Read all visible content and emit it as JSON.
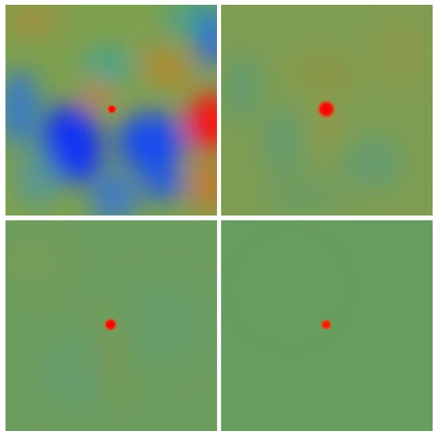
{
  "figure": {
    "panels": [
      {
        "id": "panel-1",
        "background": "#7ea04e",
        "blobs": [
          {
            "c": "#0a2cff",
            "a": 0.95
          },
          {
            "c": "#1144ff",
            "a": 0.9
          },
          {
            "c": "#2a6cf0",
            "a": 0.7
          },
          {
            "c": "#ff1010",
            "a": 0.95
          },
          {
            "c": "#e86a18",
            "a": 0.8
          },
          {
            "c": "#e06a1c",
            "a": 0.7
          },
          {
            "c": "#d47a20",
            "a": 0.6
          },
          {
            "c": "#1c58ff",
            "a": 0.9
          },
          {
            "c": "#2aa2b0",
            "a": 0.55
          },
          {
            "c": "#1f70e8",
            "a": 0.75
          },
          {
            "c": "#3a90d0",
            "a": 0.5
          },
          {
            "c": "#1a4fff",
            "a": 0.85
          },
          {
            "c": "#2c9fb2",
            "a": 0.55
          },
          {
            "c": "#c08030",
            "a": 0.5
          }
        ],
        "source_color": "#ff0000"
      },
      {
        "id": "panel-2",
        "background": "#7e9d52",
        "blobs": [
          {
            "c": "#4f9a86",
            "a": 0.5
          },
          {
            "c": "#4a9b8e",
            "a": 0.45
          },
          {
            "c": "#9a8e3a",
            "a": 0.45
          },
          {
            "c": "#a0903a",
            "a": 0.35
          },
          {
            "c": "#4c9a8a",
            "a": 0.45
          },
          {
            "c": "#5a9a78",
            "a": 0.4
          },
          {
            "c": "#c88a30",
            "a": 0.35
          }
        ],
        "source_color": "#ff0000"
      },
      {
        "id": "panel-3",
        "background": "#6d9d5e",
        "blobs": [
          {
            "c": "#5a9a7a",
            "a": 0.35
          },
          {
            "c": "#5a9a7c",
            "a": 0.3
          },
          {
            "c": "#8a9a48",
            "a": 0.3
          },
          {
            "c": "#9a9440",
            "a": 0.25
          }
        ],
        "source_color": "#ff0000"
      },
      {
        "id": "panel-4",
        "background": "#679d5e",
        "blobs": [
          {
            "c": "#6a9a62",
            "a": 0.2
          }
        ],
        "source_color": "#ff1a00"
      }
    ]
  }
}
